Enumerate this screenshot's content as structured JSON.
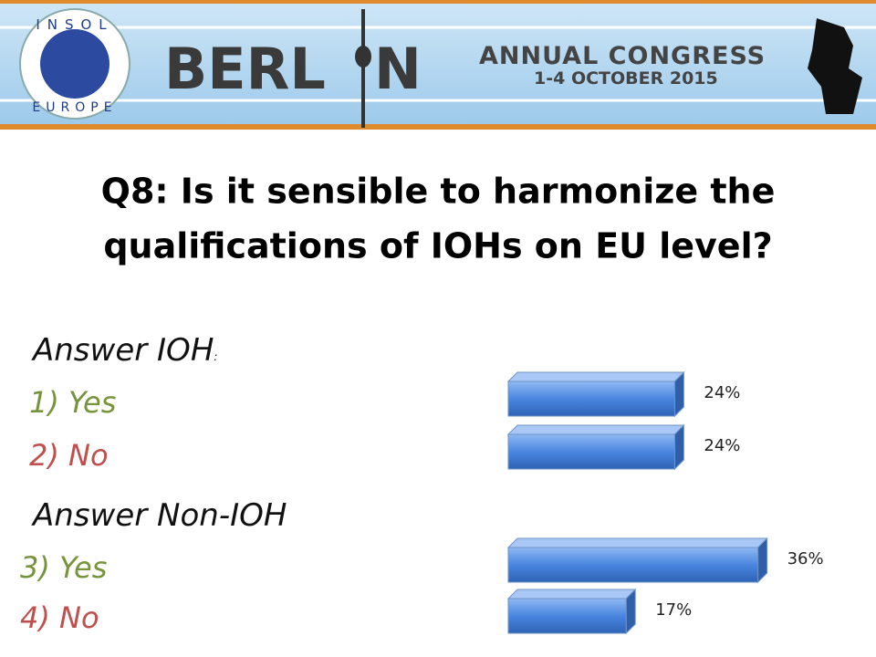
{
  "header": {
    "logo_top": "INSOL",
    "logo_bottom": "EUROPE",
    "city_left": "BERL",
    "city_right": "N",
    "event": "ANNUAL CONGRESS",
    "dates": "1-4 OCTOBER 2015"
  },
  "question": [
    "Q8: Is it sensible to harmonize the",
    "qualifications of IOHs on EU level?"
  ],
  "answer_groups": [
    {
      "heading": "Answer IOH",
      "heading_suffix": ":",
      "options": [
        "1) Yes",
        "2) No"
      ]
    },
    {
      "heading": "Answer Non-IOH",
      "options": [
        "3) Yes",
        "4) No"
      ]
    }
  ],
  "chart_data": {
    "type": "hbar3d",
    "categories": [
      null,
      null,
      null,
      null
    ],
    "values": [
      24,
      24,
      36,
      17
    ],
    "value_labels": [
      "24%",
      "24%",
      "36%",
      "17%"
    ],
    "color": "#4a86e0"
  }
}
